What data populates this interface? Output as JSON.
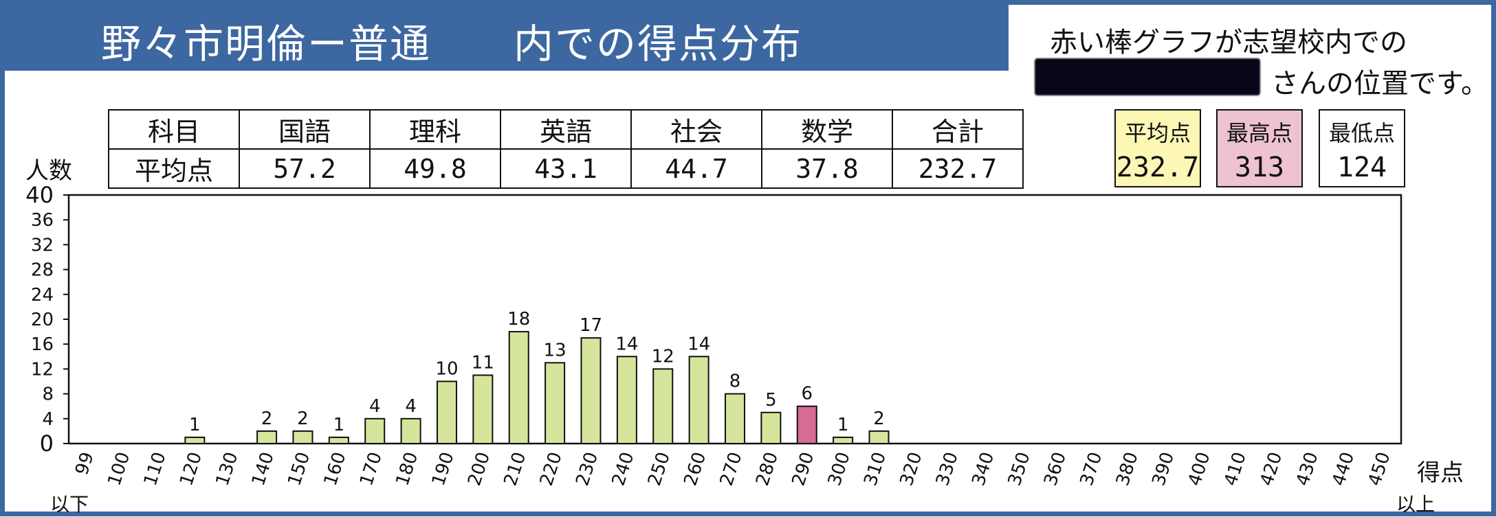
{
  "header": {
    "title": "野々市明倫ー普通　　内での得点分布"
  },
  "note": {
    "line1": "赤い棒グラフが志望校内での",
    "line2": "さんの位置です。"
  },
  "averages_table": {
    "row_header": "科目",
    "value_header": "平均点",
    "subjects": [
      "国語",
      "理科",
      "英語",
      "社会",
      "数学",
      "合計"
    ],
    "values": [
      "57.2",
      "49.8",
      "43.1",
      "44.7",
      "37.8",
      "232.7"
    ]
  },
  "stats": {
    "average_label": "平均点",
    "average_value": "232.7",
    "max_label": "最高点",
    "max_value": "313",
    "min_label": "最低点",
    "min_value": "124"
  },
  "chart_data": {
    "type": "bar",
    "ylabel": "人数",
    "xlabel": "得点",
    "low_end_note": "以下",
    "high_end_note": "以上",
    "ylim": [
      0,
      40
    ],
    "yticks": [
      0,
      4,
      8,
      12,
      16,
      20,
      24,
      28,
      32,
      36,
      40
    ],
    "categories": [
      "99",
      "100",
      "110",
      "120",
      "130",
      "140",
      "150",
      "160",
      "170",
      "180",
      "190",
      "200",
      "210",
      "220",
      "230",
      "240",
      "250",
      "260",
      "270",
      "280",
      "290",
      "300",
      "310",
      "320",
      "330",
      "340",
      "350",
      "360",
      "370",
      "380",
      "390",
      "400",
      "410",
      "420",
      "430",
      "440",
      "450"
    ],
    "values": [
      0,
      0,
      0,
      1,
      0,
      2,
      2,
      1,
      4,
      4,
      10,
      11,
      18,
      13,
      17,
      14,
      12,
      14,
      8,
      5,
      6,
      1,
      2,
      0,
      0,
      0,
      0,
      0,
      0,
      0,
      0,
      0,
      0,
      0,
      0,
      0,
      0
    ],
    "highlight_category": "290",
    "colors": {
      "bar": "#d5e69c",
      "highlight": "#d66b93",
      "stroke": "#111111"
    }
  }
}
